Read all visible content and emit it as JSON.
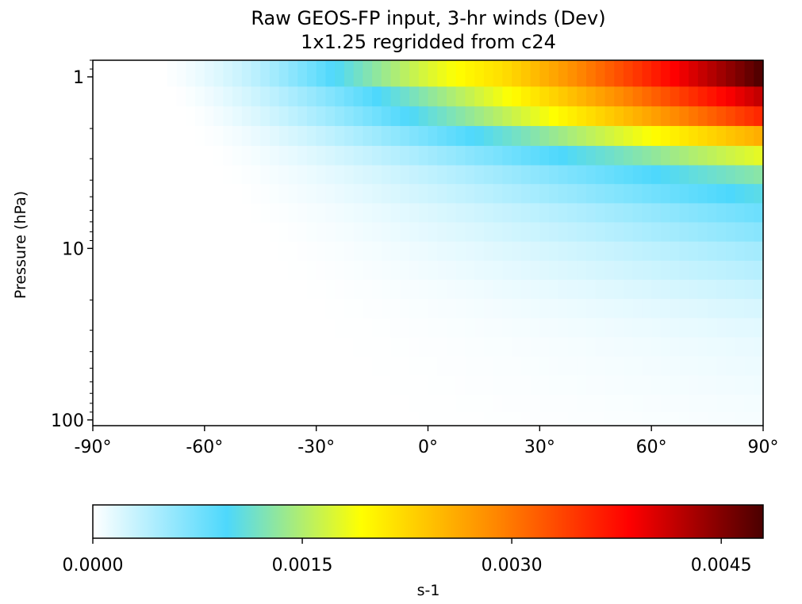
{
  "chart_data": {
    "type": "heatmap",
    "title": "Raw GEOS-FP input, 3-hr winds (Dev)",
    "subtitle": "1x1.25 regridded from c24",
    "xlabel": "",
    "ylabel": "Pressure (hPa)",
    "x_range": [
      -90,
      90
    ],
    "x_ticks": [
      -90,
      -60,
      -30,
      0,
      30,
      60,
      90
    ],
    "x_tick_labels": [
      "-90°",
      "-60°",
      "-30°",
      "0°",
      "30°",
      "60°",
      "90°"
    ],
    "y_scale": "log",
    "y_inverted": true,
    "y_range": [
      0.8,
      108
    ],
    "y_ticks": [
      1,
      10,
      100
    ],
    "y_tick_labels": [
      "1",
      "10",
      "100"
    ],
    "x": [
      -88.75,
      -86.25,
      -83.75,
      -81.25,
      -78.75,
      -76.25,
      -73.75,
      -71.25,
      -68.75,
      -66.25,
      -63.75,
      -61.25,
      -58.75,
      -56.25,
      -53.75,
      -51.25,
      -48.75,
      -46.25,
      -43.75,
      -41.25,
      -38.75,
      -36.25,
      -33.75,
      -31.25,
      -28.75,
      -26.25,
      -23.75,
      -21.25,
      -18.75,
      -16.25,
      -13.75,
      -11.25,
      -8.75,
      -6.25,
      -3.75,
      -1.25,
      1.25,
      3.75,
      6.25,
      8.75,
      11.25,
      13.75,
      16.25,
      18.75,
      21.25,
      23.75,
      26.25,
      28.75,
      31.25,
      33.75,
      36.25,
      38.75,
      41.25,
      43.75,
      46.25,
      48.75,
      51.25,
      53.75,
      56.25,
      58.75,
      61.25,
      63.75,
      66.25,
      68.75,
      71.25,
      73.75,
      76.25,
      78.75,
      81.25,
      83.75,
      86.25,
      88.75
    ],
    "levels_hPa": [
      1.0,
      1.3,
      1.7,
      2.2,
      2.9,
      3.7,
      4.8,
      6.2,
      8.0,
      10.4,
      13.4,
      17.3,
      22.4,
      29.0,
      37.5,
      48.5,
      62.7,
      81.1,
      100.0
    ],
    "row_peaks": [
      0.0048,
      0.0042,
      0.0036,
      0.0026,
      0.0018,
      0.0013,
      0.00105,
      0.0008,
      0.00065,
      0.0005,
      0.0004,
      0.0003,
      0.00022,
      0.00016,
      0.00012,
      0.0001,
      8e-05,
      6e-05,
      5e-05
    ],
    "colorbar": {
      "label": "s-1",
      "range": [
        0.0,
        0.0048
      ],
      "ticks": [
        0.0,
        0.0015,
        0.003,
        0.0045
      ],
      "tick_labels": [
        "0.0000",
        "0.0015",
        "0.0030",
        "0.0045"
      ],
      "colormap": [
        "#ffffff",
        "#4dd8fc",
        "#ffff00",
        "#ff8800",
        "#ff0000",
        "#4a0000"
      ]
    },
    "grid": false
  }
}
